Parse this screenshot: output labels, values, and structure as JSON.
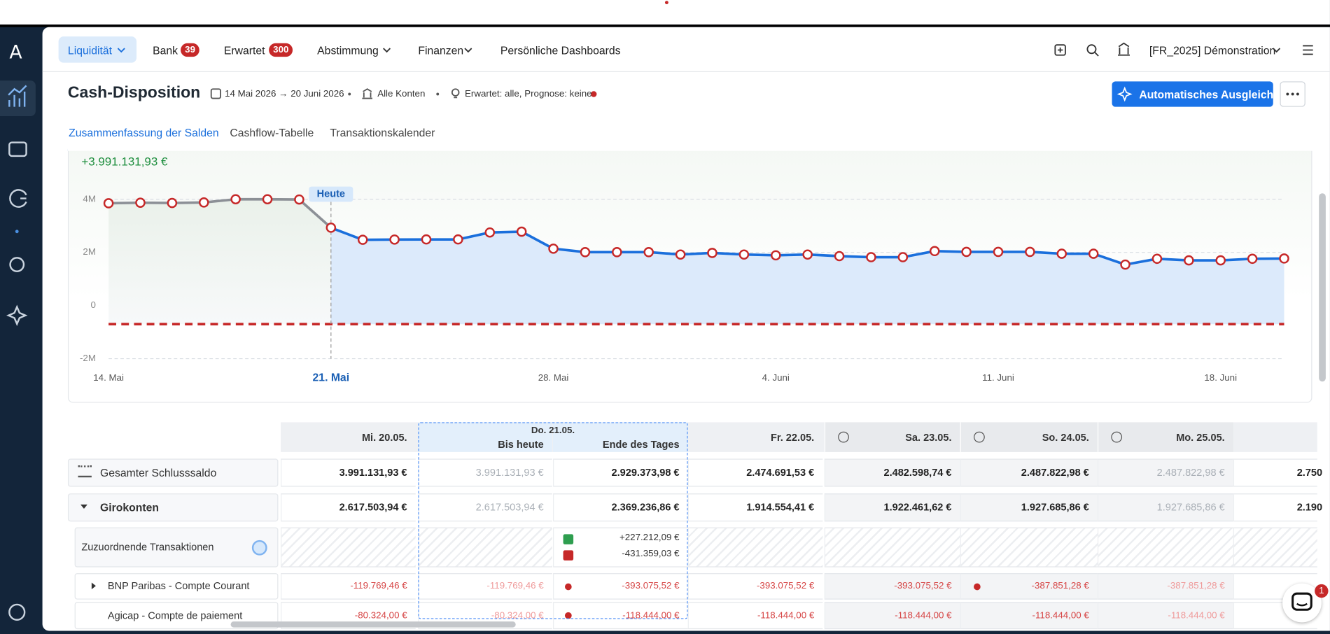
{
  "nav": {
    "logo": "A",
    "items": [
      {
        "label": "Liquidität"
      },
      {
        "label": "Bank",
        "badge": "39"
      },
      {
        "label": "Erwartet",
        "badge": "300"
      },
      {
        "label": "Abstimmung"
      },
      {
        "label": "Finanzen"
      },
      {
        "label": "Persönliche Dashboards"
      }
    ],
    "workspace": "[FR_2025] Démonstration"
  },
  "header": {
    "title": "Cash-Disposition",
    "period": "14 Mai 2026 → 20 Juni 2026",
    "accounts": "Alle Konten",
    "filter": "Erwartet: alle, Prognose: keine",
    "button": "Automatisches Ausgleichen"
  },
  "tabs": [
    "Zusammenfassung der Salden",
    "Cashflow-Tabelle",
    "Transaktionskalender"
  ],
  "chart_data": {
    "type": "line",
    "headline": "+3.991.131,93 €",
    "annotation": "Heute",
    "highlight_category": "21. Mai",
    "categories": [
      "14. Mai",
      null,
      null,
      null,
      null,
      null,
      null,
      "21. Mai",
      null,
      null,
      null,
      null,
      null,
      null,
      "28. Mai",
      null,
      null,
      null,
      null,
      null,
      null,
      "4. Juni",
      null,
      null,
      null,
      null,
      null,
      null,
      "11. Juni",
      null,
      null,
      null,
      null,
      null,
      null,
      "18. Juni",
      null,
      null
    ],
    "series": [
      {
        "color": "#1a6fdc",
        "past_color": "#8c9096",
        "marker_color": "#c62828",
        "values": [
          3850000,
          3870000,
          3860000,
          3880000,
          4000000,
          4000000,
          3991131.93,
          2929373.98,
          2474691.53,
          2482598.74,
          2487822.98,
          2487822.98,
          2750000,
          2780000,
          2140000,
          2010000,
          2010000,
          2010000,
          1920000,
          1980000,
          1920000,
          1890000,
          1920000,
          1860000,
          1820000,
          1820000,
          2050000,
          2020000,
          2020000,
          2020000,
          1950000,
          1950000,
          1540000,
          1760000,
          1700000,
          1700000,
          1760000,
          1770000
        ]
      }
    ],
    "threshold": -700000,
    "threshold_color": "#c62828",
    "ylim": [
      -2000000,
      4000000
    ],
    "yticks": [
      {
        "value": -2000000,
        "label": "-2M"
      },
      0,
      {
        "value": 2000000,
        "label": "2M"
      },
      {
        "value": 4000000,
        "label": "4M"
      }
    ],
    "grid": true
  },
  "table": {
    "group_label": "Do. 21.05.",
    "columns": [
      {
        "label": "Mi. 20.05."
      },
      {
        "label": "Bis heute",
        "in_group": true,
        "muted": true
      },
      {
        "label": "Ende des Tages",
        "in_group": true
      },
      {
        "label": "Fr. 22.05."
      },
      {
        "label": "Sa. 23.05.",
        "weekend": true
      },
      {
        "label": "So. 24.05.",
        "weekend": true
      },
      {
        "label": "Mo. 25.05.",
        "weekend": true,
        "muted": true
      },
      {
        "label": null
      }
    ],
    "rows": [
      {
        "label": "Gesamter Schlusssaldo",
        "kind": "total",
        "cells": [
          "3.991.131,93 €",
          "3.991.131,93 €",
          "2.929.373,98 €",
          "2.474.691,53 €",
          "2.482.598,74 €",
          "2.487.822,98 €",
          "2.487.822,98 €",
          "2.750"
        ]
      },
      {
        "label": "Girokonten",
        "kind": "group",
        "cells": [
          "2.617.503,94 €",
          "2.617.503,94 €",
          "2.369.236,86 €",
          "1.914.554,41 €",
          "1.922.461,62 €",
          "1.927.685,86 €",
          "1.927.685,86 €",
          "2.190"
        ]
      },
      {
        "label": "Zuzuordnende Transaktionen",
        "kind": "pending",
        "cells": [
          null,
          null,
          [
            "+227.212,09 €",
            "-431.359,03 €"
          ],
          null,
          null,
          null,
          null,
          null
        ]
      },
      {
        "label": "BNP Paribas - Compte Courant",
        "kind": "account",
        "cells": [
          "-119.769,46 €",
          "-119.769,46 €",
          "-393.075,52 €",
          "-393.075,52 €",
          "-393.075,52 €",
          "-387.851,28 €",
          "-387.851,28 €",
          null
        ]
      },
      {
        "label": "Agicap - Compte de paiement",
        "kind": "account",
        "cells": [
          "-80.324,00 €",
          "-80.324,00 €",
          "-118.444,00 €",
          "-118.444,00 €",
          "-118.444,00 €",
          "-118.444,00 €",
          "-118.444,00 €",
          null
        ]
      }
    ]
  },
  "chat_badge": "1"
}
